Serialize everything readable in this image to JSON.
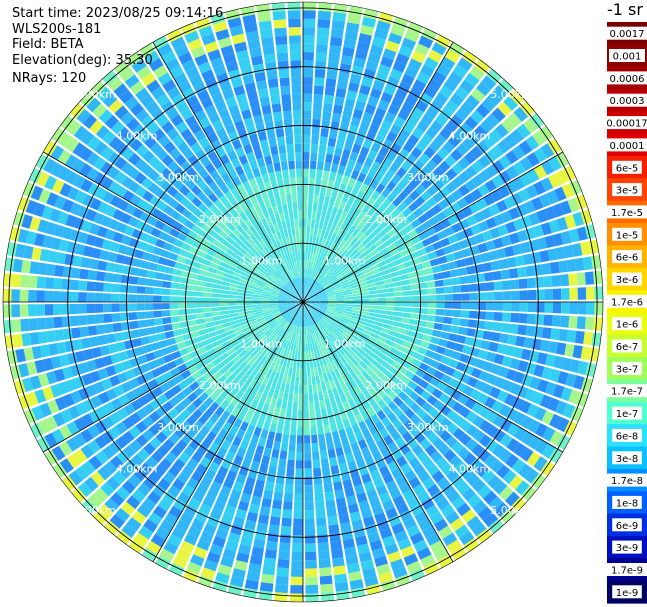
{
  "header": {
    "start_time": "Start time: 2023/08/25 09:14:16",
    "instrument": "WLS200s-181",
    "field": "Field: BETA",
    "elevation": "Elevation(deg): 35.30",
    "nrays": "NRays: 120"
  },
  "colorbar": {
    "unit_label": "-1 sr",
    "ticks": [
      "0.0017",
      "0.001",
      "0.0006",
      "0.0003",
      "0.00017",
      "0.0001",
      "6e-5",
      "3e-5",
      "1.7e-5",
      "1e-5",
      "6e-6",
      "3e-6",
      "1.7e-6",
      "1e-6",
      "6e-7",
      "3e-7",
      "1.7e-7",
      "1e-7",
      "6e-8",
      "3e-8",
      "1.7e-8",
      "1e-8",
      "6e-9",
      "3e-9",
      "1.7e-9",
      "1e-9"
    ],
    "colors": [
      "#7a0000",
      "#8f0000",
      "#a30000",
      "#b80000",
      "#cc0000",
      "#e00000",
      "#f52000",
      "#ff4400",
      "#ff6a00",
      "#ff9000",
      "#ffb300",
      "#ffd500",
      "#fff200",
      "#eaff10",
      "#c8ff30",
      "#a0ff58",
      "#7effa0",
      "#50ffd0",
      "#2ce0ff",
      "#0ac0ff",
      "#0090ff",
      "#0060ff",
      "#0030e0",
      "#0010c0",
      "#000090",
      "#000060"
    ]
  },
  "chart_data": {
    "type": "heatmap",
    "projection": "polar PPI scan",
    "field": "BETA",
    "nrays": 120,
    "range_rings_km": [
      1,
      2,
      3,
      4,
      5
    ],
    "ring_labels": [
      "1.00km",
      "2.00km",
      "3.00km",
      "4.00km",
      "5.00km"
    ],
    "max_range_km": 5.1,
    "dominant_level": "1e-7",
    "near_range_level": "1.7e-7",
    "outer_edge_level": "1e-6"
  }
}
